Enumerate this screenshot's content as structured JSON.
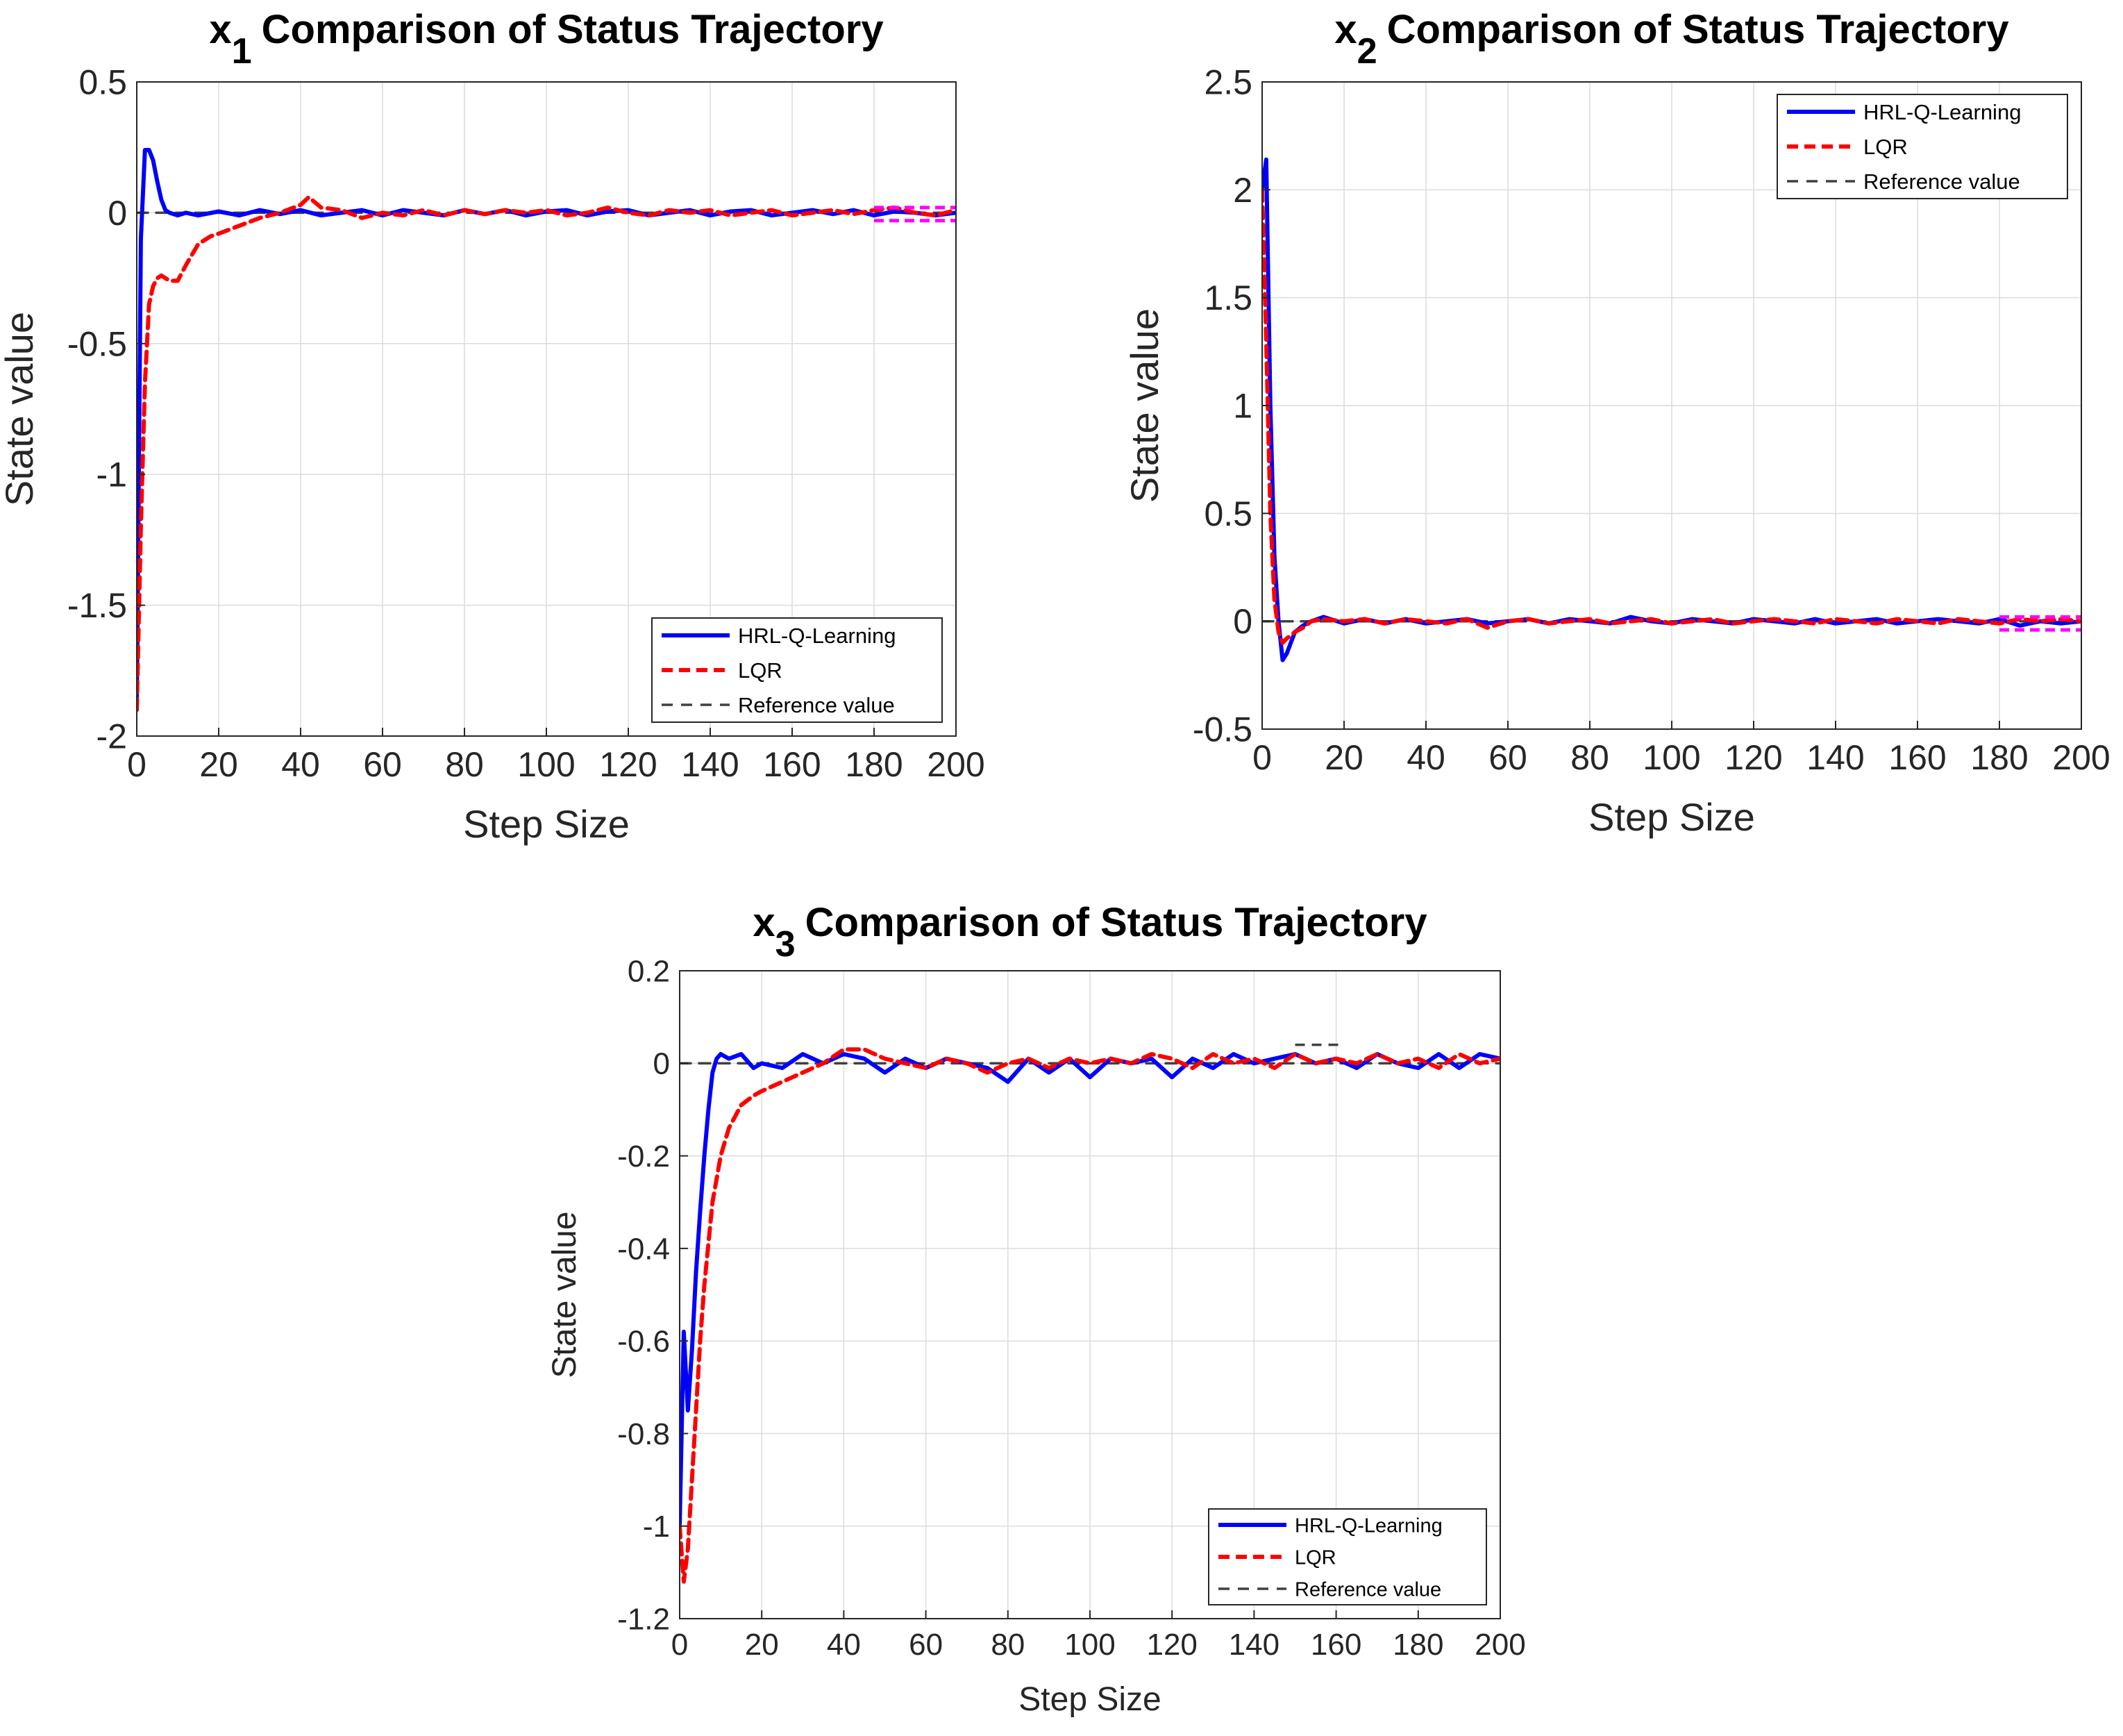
{
  "colors": {
    "hrl": "#0000ff",
    "lqr": "#ff0000",
    "reference": "#404040",
    "tail_highlight": "#ff00ff",
    "grid": "#dcdcdc",
    "axis": "#262626"
  },
  "chart_data": [
    {
      "type": "line",
      "title": "Comparison of Status Trajectory",
      "title_var": "x",
      "title_sub": "1",
      "xlabel": "Step Size",
      "ylabel": "State value",
      "xlim": [
        0,
        200
      ],
      "ylim": [
        -2,
        0.5
      ],
      "xticks": [
        0,
        20,
        40,
        60,
        80,
        100,
        120,
        140,
        160,
        180,
        200
      ],
      "yticks": [
        0.5,
        0,
        -0.5,
        -1,
        -1.5,
        -2
      ],
      "grid": true,
      "legend_position": "bottom-right",
      "series": [
        {
          "name": "HRL-Q-Learning",
          "style": "solid",
          "x": [
            0,
            1,
            2,
            3,
            4,
            5,
            6,
            7,
            8,
            10,
            12,
            15,
            20,
            25,
            30,
            35,
            40,
            45,
            50,
            55,
            60,
            65,
            70,
            75,
            80,
            85,
            90,
            95,
            100,
            105,
            110,
            115,
            120,
            125,
            130,
            135,
            140,
            145,
            150,
            155,
            160,
            165,
            170,
            175,
            180,
            185,
            190,
            195,
            200
          ],
          "y": [
            -1.9,
            -0.1,
            0.24,
            0.24,
            0.2,
            0.12,
            0.05,
            0.01,
            0.0,
            -0.01,
            0.0,
            -0.01,
            0.005,
            -0.01,
            0.01,
            -0.005,
            0.01,
            -0.01,
            0.0,
            0.01,
            -0.01,
            0.01,
            0.0,
            -0.01,
            0.01,
            -0.005,
            0.01,
            -0.01,
            0.005,
            0.01,
            -0.01,
            0.005,
            0.01,
            -0.01,
            0.0,
            0.01,
            -0.01,
            0.005,
            0.01,
            -0.01,
            0.0,
            0.01,
            -0.005,
            0.01,
            -0.01,
            0.005,
            0.0,
            -0.01,
            0.0
          ]
        },
        {
          "name": "LQR",
          "style": "dashed",
          "x": [
            0,
            1,
            2,
            3,
            4,
            5,
            6,
            8,
            10,
            12,
            15,
            18,
            20,
            25,
            30,
            35,
            40,
            42,
            45,
            50,
            55,
            60,
            65,
            70,
            75,
            80,
            85,
            90,
            95,
            100,
            105,
            110,
            115,
            120,
            125,
            130,
            135,
            140,
            145,
            150,
            155,
            160,
            165,
            170,
            175,
            180,
            185,
            190,
            195,
            200
          ],
          "y": [
            -1.9,
            -1.2,
            -0.65,
            -0.35,
            -0.28,
            -0.25,
            -0.24,
            -0.26,
            -0.26,
            -0.2,
            -0.12,
            -0.09,
            -0.08,
            -0.05,
            -0.02,
            0.0,
            0.03,
            0.06,
            0.02,
            0.01,
            -0.02,
            0.0,
            -0.01,
            0.01,
            -0.01,
            0.01,
            -0.005,
            0.01,
            0.0,
            0.01,
            -0.01,
            0.0,
            0.02,
            0.0,
            -0.01,
            0.01,
            0.0,
            0.01,
            -0.01,
            0.0,
            0.01,
            -0.01,
            0.0,
            0.01,
            -0.005,
            0.01,
            0.02,
            0.0,
            -0.01,
            0.01
          ]
        },
        {
          "name": "Reference value",
          "style": "dashed",
          "x": [
            0,
            200
          ],
          "y": [
            0,
            0
          ]
        }
      ],
      "tail_highlight": {
        "x": [
          180,
          200
        ],
        "y_upper": 0.02,
        "y_lower": -0.03
      }
    },
    {
      "type": "line",
      "title": "Comparison of Status Trajectory",
      "title_var": "x",
      "title_sub": "2",
      "xlabel": "Step Size",
      "ylabel": "State value",
      "xlim": [
        0,
        200
      ],
      "ylim": [
        -0.5,
        2.5
      ],
      "xticks": [
        0,
        20,
        40,
        60,
        80,
        100,
        120,
        140,
        160,
        180,
        200
      ],
      "yticks": [
        2.5,
        2,
        1.5,
        1,
        0.5,
        0,
        -0.5
      ],
      "grid": true,
      "legend_position": "top-right",
      "series": [
        {
          "name": "HRL-Q-Learning",
          "style": "solid",
          "x": [
            0,
            1,
            2,
            3,
            4,
            5,
            6,
            7,
            8,
            10,
            12,
            15,
            20,
            25,
            30,
            35,
            40,
            45,
            50,
            55,
            60,
            65,
            70,
            75,
            80,
            85,
            90,
            95,
            100,
            105,
            110,
            115,
            120,
            125,
            130,
            135,
            140,
            145,
            150,
            155,
            160,
            165,
            170,
            175,
            180,
            185,
            190,
            195,
            200
          ],
          "y": [
            2.0,
            2.14,
            1.0,
            0.3,
            0.0,
            -0.18,
            -0.15,
            -0.1,
            -0.05,
            -0.02,
            0.0,
            0.02,
            -0.01,
            0.01,
            -0.01,
            0.01,
            -0.01,
            0.0,
            0.01,
            -0.01,
            0.0,
            0.01,
            -0.01,
            0.01,
            0.0,
            -0.01,
            0.02,
            0.0,
            -0.01,
            0.01,
            0.0,
            -0.01,
            0.01,
            0.0,
            -0.01,
            0.01,
            -0.01,
            0.0,
            0.01,
            -0.01,
            0.0,
            0.01,
            0.0,
            -0.01,
            0.01,
            -0.02,
            0.0,
            -0.01,
            0.0
          ]
        },
        {
          "name": "LQR",
          "style": "dashed",
          "x": [
            0,
            1,
            2,
            3,
            4,
            5,
            6,
            8,
            10,
            12,
            15,
            20,
            25,
            30,
            35,
            40,
            45,
            50,
            55,
            60,
            65,
            70,
            75,
            80,
            85,
            90,
            95,
            100,
            105,
            110,
            115,
            120,
            125,
            130,
            135,
            140,
            145,
            150,
            155,
            160,
            165,
            170,
            175,
            180,
            185,
            190,
            195,
            200
          ],
          "y": [
            2.0,
            1.3,
            0.5,
            0.1,
            -0.05,
            -0.1,
            -0.08,
            -0.05,
            -0.03,
            0.0,
            0.01,
            0.0,
            0.01,
            -0.01,
            0.01,
            0.0,
            -0.01,
            0.01,
            -0.03,
            0.0,
            0.01,
            -0.01,
            0.0,
            0.01,
            -0.01,
            0.0,
            0.01,
            -0.01,
            0.0,
            0.01,
            -0.01,
            0.0,
            0.01,
            0.0,
            -0.01,
            0.01,
            0.0,
            -0.01,
            0.01,
            0.0,
            -0.01,
            0.01,
            0.0,
            -0.01,
            0.01,
            0.0,
            0.01,
            0.0
          ]
        },
        {
          "name": "Reference value",
          "style": "dashed",
          "x": [
            0,
            200
          ],
          "y": [
            0,
            0
          ]
        }
      ],
      "tail_highlight": {
        "x": [
          180,
          200
        ],
        "y_upper": 0.02,
        "y_lower": -0.04
      }
    },
    {
      "type": "line",
      "title": "Comparison of Status Trajectory",
      "title_var": "x",
      "title_sub": "3",
      "xlabel": "Step Size",
      "ylabel": "State value",
      "xlim": [
        0,
        200
      ],
      "ylim": [
        -1.2,
        0.2
      ],
      "xticks": [
        0,
        20,
        40,
        60,
        80,
        100,
        120,
        140,
        160,
        180,
        200
      ],
      "yticks": [
        0.2,
        0,
        -0.2,
        -0.4,
        -0.6,
        -0.8,
        -1,
        -1.2
      ],
      "grid": true,
      "legend_position": "bottom-right",
      "series": [
        {
          "name": "HRL-Q-Learning",
          "style": "solid",
          "x": [
            0,
            1,
            2,
            3,
            4,
            5,
            6,
            7,
            8,
            9,
            10,
            12,
            15,
            18,
            20,
            25,
            30,
            35,
            40,
            45,
            50,
            55,
            60,
            65,
            70,
            75,
            80,
            85,
            90,
            95,
            100,
            105,
            110,
            115,
            120,
            125,
            130,
            135,
            140,
            145,
            150,
            155,
            160,
            165,
            170,
            175,
            180,
            185,
            190,
            195,
            200
          ],
          "y": [
            -1.0,
            -0.58,
            -0.75,
            -0.62,
            -0.45,
            -0.32,
            -0.2,
            -0.1,
            -0.02,
            0.01,
            0.02,
            0.01,
            0.02,
            -0.01,
            0.0,
            -0.01,
            0.02,
            0.0,
            0.02,
            0.01,
            -0.02,
            0.01,
            -0.01,
            0.01,
            0.0,
            -0.01,
            -0.04,
            0.01,
            -0.02,
            0.01,
            -0.03,
            0.01,
            0.0,
            0.01,
            -0.03,
            0.01,
            -0.01,
            0.02,
            0.0,
            0.01,
            0.02,
            0.0,
            0.01,
            -0.01,
            0.02,
            0.0,
            -0.01,
            0.02,
            -0.01,
            0.02,
            0.01
          ]
        },
        {
          "name": "LQR",
          "style": "dashed",
          "x": [
            0,
            1,
            2,
            3,
            4,
            5,
            6,
            8,
            10,
            12,
            15,
            18,
            20,
            25,
            30,
            35,
            40,
            45,
            50,
            55,
            60,
            65,
            70,
            75,
            80,
            85,
            90,
            95,
            100,
            105,
            110,
            115,
            120,
            125,
            130,
            135,
            140,
            145,
            150,
            155,
            160,
            165,
            170,
            175,
            180,
            185,
            190,
            195,
            200
          ],
          "y": [
            -1.0,
            -1.12,
            -1.05,
            -0.9,
            -0.75,
            -0.6,
            -0.48,
            -0.3,
            -0.2,
            -0.14,
            -0.09,
            -0.07,
            -0.06,
            -0.04,
            -0.02,
            0.0,
            0.03,
            0.03,
            0.01,
            0.0,
            -0.01,
            0.01,
            0.0,
            -0.02,
            0.0,
            0.01,
            -0.01,
            0.01,
            0.0,
            0.01,
            0.0,
            0.02,
            0.01,
            -0.01,
            0.02,
            0.0,
            0.01,
            -0.01,
            0.02,
            0.0,
            0.01,
            0.0,
            0.02,
            0.0,
            0.01,
            -0.01,
            0.02,
            0.0,
            0.01
          ]
        },
        {
          "name": "Reference value",
          "style": "dashed",
          "x": [
            0,
            200
          ],
          "y": [
            0,
            0
          ]
        }
      ],
      "tail_highlight": {
        "x": [
          150,
          162
        ],
        "y": 0.04
      }
    }
  ]
}
